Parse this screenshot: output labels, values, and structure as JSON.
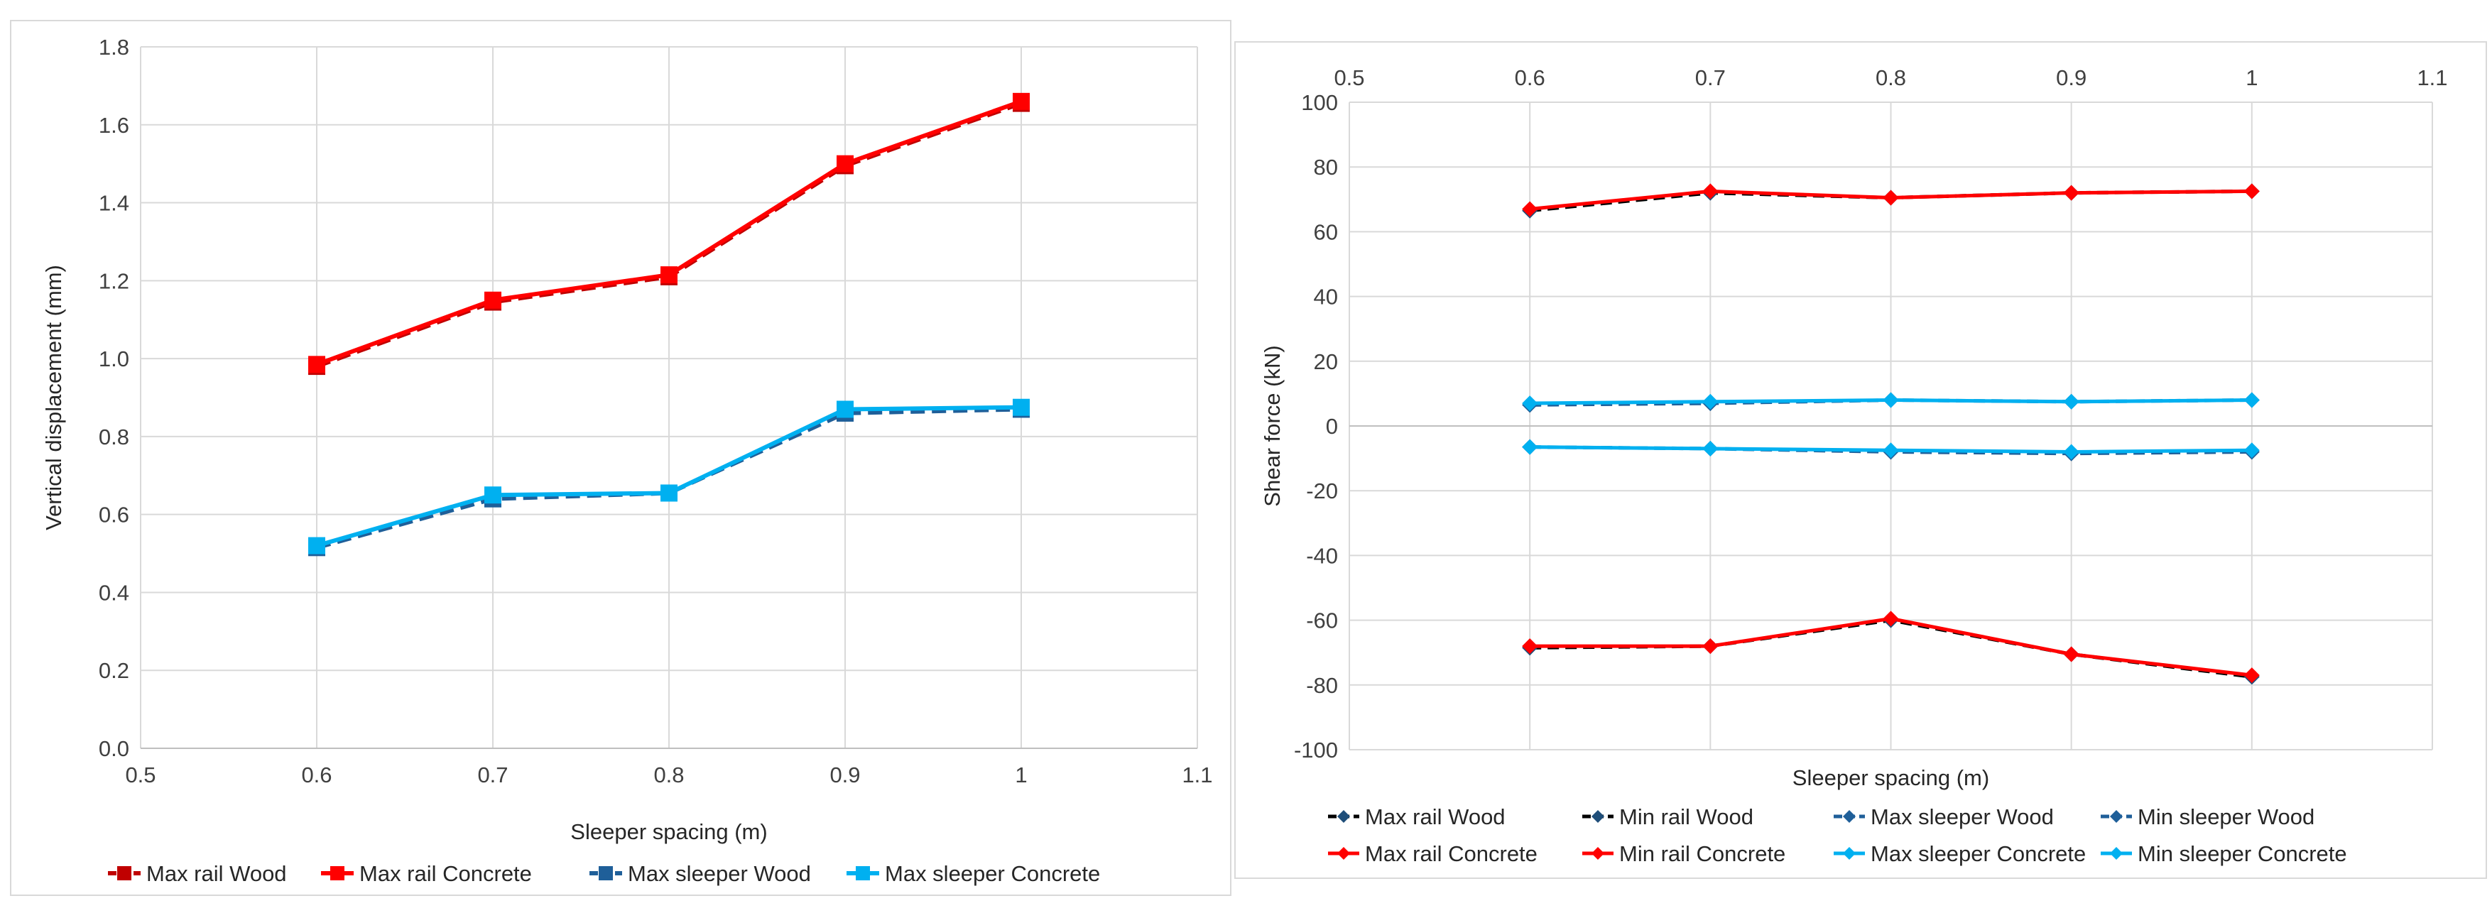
{
  "chart_data": [
    {
      "type": "line",
      "title": "",
      "xlabel": "Sleeper spacing (m)",
      "ylabel": "Vertical displacement (mm)",
      "xlim": [
        0.5,
        1.1
      ],
      "ylim": [
        0,
        1.8
      ],
      "x_ticks": [
        "0.5",
        "0.6",
        "0.7",
        "0.8",
        "0.9",
        "1",
        "1.1"
      ],
      "y_ticks": [
        "0.0",
        "0.2",
        "0.4",
        "0.6",
        "0.8",
        "1.0",
        "1.2",
        "1.4",
        "1.6",
        "1.8"
      ],
      "grid": true,
      "legend_position": "bottom",
      "x": [
        0.6,
        0.7,
        0.8,
        0.9,
        1.0
      ],
      "series": [
        {
          "name": "Max rail Wood",
          "color": "#c00000",
          "dash": true,
          "marker": "square",
          "values": [
            0.98,
            1.145,
            1.21,
            1.495,
            1.655
          ]
        },
        {
          "name": "Max rail Concrete",
          "color": "#ff0000",
          "dash": false,
          "marker": "square",
          "values": [
            0.985,
            1.15,
            1.215,
            1.5,
            1.66
          ]
        },
        {
          "name": "Max sleeper Wood",
          "color": "#1f5f99",
          "dash": true,
          "marker": "square",
          "values": [
            0.515,
            0.64,
            0.655,
            0.86,
            0.87
          ]
        },
        {
          "name": "Max sleeper Concrete",
          "color": "#00b0f0",
          "dash": false,
          "marker": "square",
          "values": [
            0.52,
            0.65,
            0.655,
            0.87,
            0.875
          ]
        }
      ]
    },
    {
      "type": "line",
      "title": "",
      "xlabel": "Sleeper spacing (m)",
      "ylabel": "Shear force  (kN)",
      "xlim": [
        0.5,
        1.1
      ],
      "ylim": [
        -100,
        100
      ],
      "x_ticks": [
        "0.5",
        "0.6",
        "0.7",
        "0.8",
        "0.9",
        "1",
        "1.1"
      ],
      "y_ticks": [
        "-100",
        "-80",
        "-60",
        "-40",
        "-20",
        "0",
        "20",
        "40",
        "60",
        "80",
        "100"
      ],
      "grid": true,
      "x_axis_position": "top",
      "legend_position": "bottom",
      "x": [
        0.6,
        0.7,
        0.8,
        0.9,
        1.0
      ],
      "series": [
        {
          "name": "Max rail Wood",
          "color": "#000000",
          "marker_color": "#1f4e79",
          "dash": true,
          "marker": "diamond",
          "values": [
            66.5,
            72,
            70.5,
            72,
            72.5
          ]
        },
        {
          "name": "Min rail Wood",
          "color": "#000000",
          "marker_color": "#1f4e79",
          "dash": true,
          "marker": "diamond",
          "values": [
            -68.5,
            -68,
            -60,
            -70.5,
            -77.5
          ]
        },
        {
          "name": "Max sleeper Wood",
          "color": "#1f5f99",
          "marker_color": "#1f5f99",
          "dash": true,
          "marker": "diamond",
          "values": [
            6.5,
            7,
            8,
            7.5,
            8
          ]
        },
        {
          "name": "Min sleeper Wood",
          "color": "#1f5f99",
          "marker_color": "#1f5f99",
          "dash": true,
          "marker": "diamond",
          "values": [
            -6.5,
            -7,
            -8,
            -8.5,
            -8
          ]
        },
        {
          "name": "Max rail Concrete",
          "color": "#ff0000",
          "marker_color": "#ff0000",
          "dash": false,
          "marker": "diamond",
          "values": [
            67,
            72.5,
            70.5,
            72,
            72.5
          ]
        },
        {
          "name": "Min rail Concrete",
          "color": "#ff0000",
          "marker_color": "#ff0000",
          "dash": false,
          "marker": "diamond",
          "values": [
            -68,
            -68,
            -59.5,
            -70.5,
            -77
          ]
        },
        {
          "name": "Max sleeper Concrete",
          "color": "#00b0f0",
          "marker_color": "#00b0f0",
          "dash": false,
          "marker": "diamond",
          "values": [
            7,
            7.5,
            8,
            7.5,
            8
          ]
        },
        {
          "name": "Min sleeper Concrete",
          "color": "#00b0f0",
          "marker_color": "#00b0f0",
          "dash": false,
          "marker": "diamond",
          "values": [
            -6.5,
            -7,
            -7.5,
            -8,
            -7.5
          ]
        }
      ]
    }
  ]
}
